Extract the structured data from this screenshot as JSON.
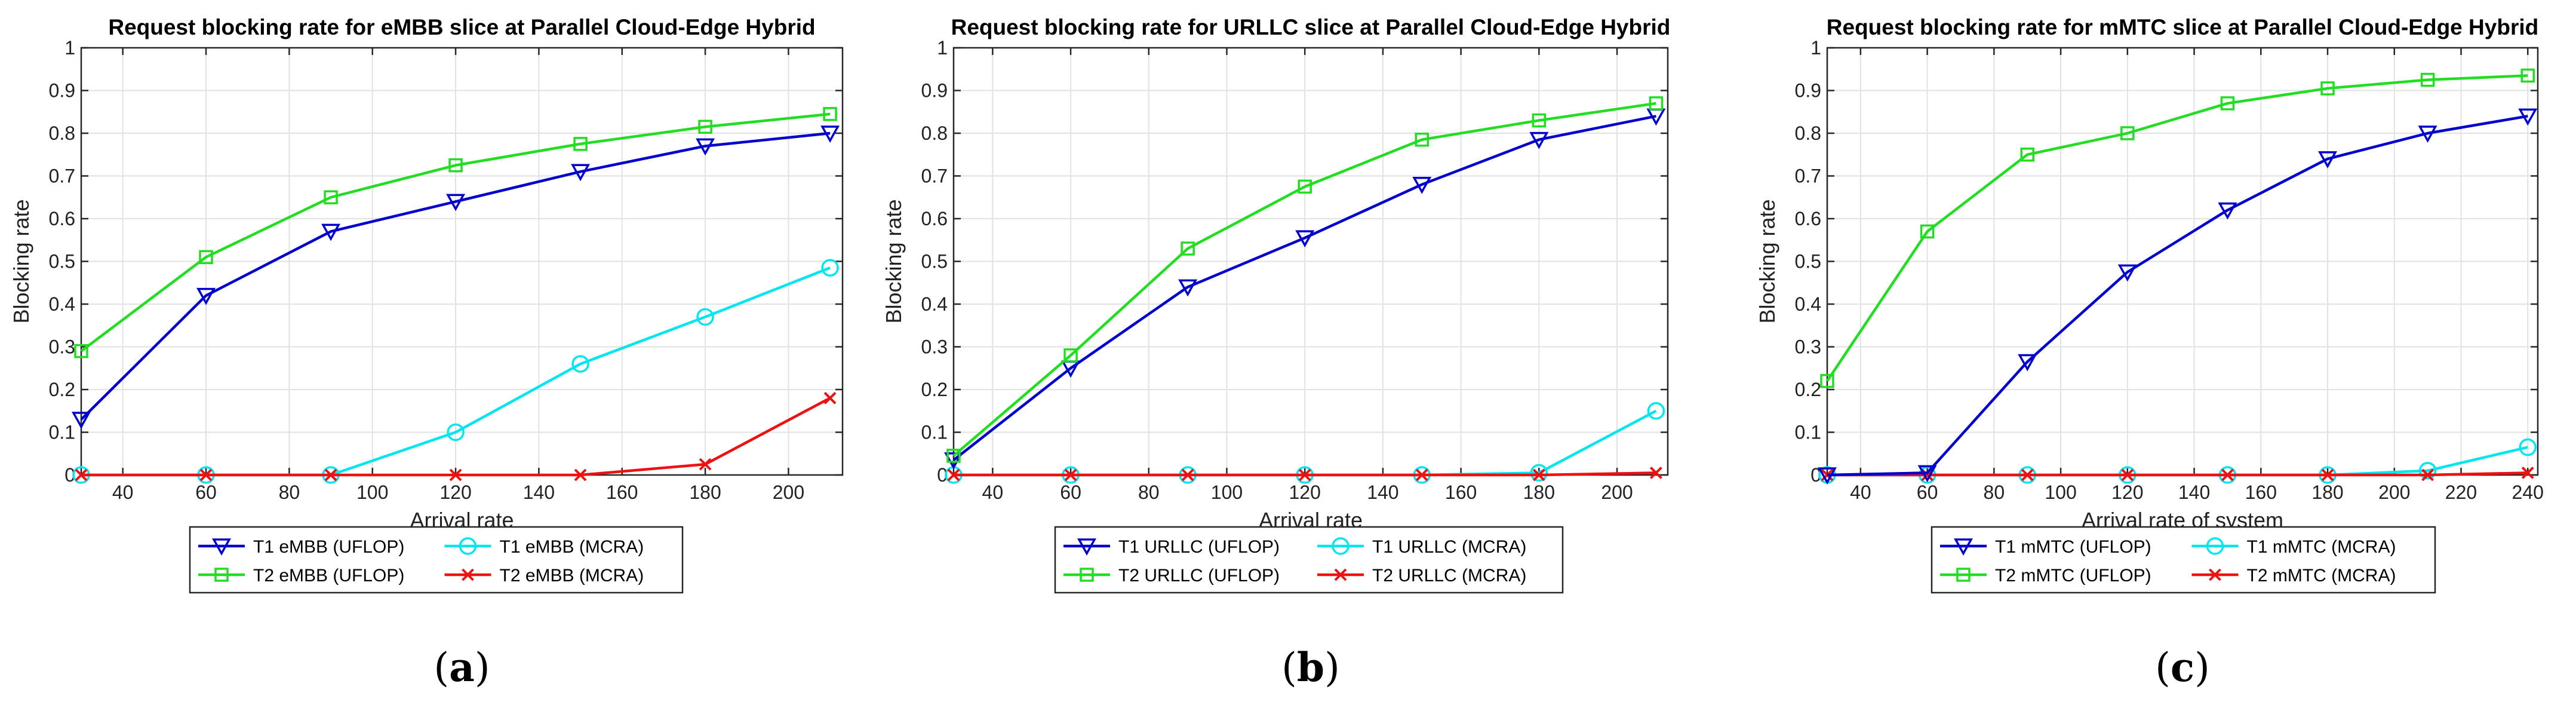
{
  "chart_data": [
    {
      "type": "line",
      "panel_label": "(a)",
      "panel_letter": "a",
      "title": "Request blocking rate for eMBB slice at Parallel Cloud-Edge Hybrid",
      "xlabel": "Arrival rate",
      "ylabel": "Blocking rate",
      "xlim": [
        30,
        213
      ],
      "ylim": [
        0,
        1
      ],
      "xticks": [
        40,
        60,
        80,
        100,
        120,
        140,
        160,
        180,
        200
      ],
      "xtick_labels": [
        "40",
        "60",
        "80",
        "100",
        "120",
        "140",
        "160",
        "180",
        "200"
      ],
      "yticks": [
        0,
        0.1,
        0.2,
        0.3,
        0.4,
        0.5,
        0.6,
        0.7,
        0.8,
        0.9,
        1
      ],
      "ytick_labels": [
        "0",
        "0.1",
        "0.2",
        "0.3",
        "0.4",
        "0.5",
        "0.6",
        "0.7",
        "0.8",
        "0.9",
        "1"
      ],
      "grid": true,
      "legend_position": "bottom",
      "x": [
        30,
        60,
        90,
        120,
        150,
        180,
        210
      ],
      "series": [
        {
          "name": "T1 eMBB (UFLOP)",
          "color": "#0000cc",
          "marker": "triangle-down",
          "values": [
            0.13,
            0.42,
            0.57,
            0.64,
            0.71,
            0.77,
            0.8
          ]
        },
        {
          "name": "T1 eMBB (MCRA)",
          "color": "#00e5ee",
          "marker": "circle",
          "values": [
            0.0,
            0.0,
            0.0,
            0.1,
            0.26,
            0.37,
            0.485
          ]
        },
        {
          "name": "T2 eMBB (UFLOP)",
          "color": "#22dd22",
          "marker": "square",
          "values": [
            0.29,
            0.51,
            0.65,
            0.725,
            0.775,
            0.815,
            0.845
          ]
        },
        {
          "name": "T2 eMBB (MCRA)",
          "color": "#ee1111",
          "marker": "x",
          "values": [
            0.0,
            0.0,
            0.0,
            0.0,
            0.0,
            0.025,
            0.18
          ]
        }
      ]
    },
    {
      "type": "line",
      "panel_label": "(b)",
      "panel_letter": "b",
      "title": "Request blocking rate for URLLC slice at Parallel Cloud-Edge Hybrid",
      "xlabel": "Arrival rate",
      "ylabel": "Blocking rate",
      "xlim": [
        30,
        213
      ],
      "ylim": [
        0,
        1
      ],
      "xticks": [
        40,
        60,
        80,
        100,
        120,
        140,
        160,
        180,
        200
      ],
      "xtick_labels": [
        "40",
        "60",
        "80",
        "100",
        "120",
        "140",
        "160",
        "180",
        "200"
      ],
      "yticks": [
        0,
        0.1,
        0.2,
        0.3,
        0.4,
        0.5,
        0.6,
        0.7,
        0.8,
        0.9,
        1
      ],
      "ytick_labels": [
        "0",
        "0.1",
        "0.2",
        "0.3",
        "0.4",
        "0.5",
        "0.6",
        "0.7",
        "0.8",
        "0.9",
        "1"
      ],
      "grid": true,
      "legend_position": "bottom",
      "x": [
        30,
        60,
        90,
        120,
        150,
        180,
        210
      ],
      "series": [
        {
          "name": "T1 URLLC (UFLOP)",
          "color": "#0000cc",
          "marker": "triangle-down",
          "values": [
            0.035,
            0.25,
            0.44,
            0.555,
            0.68,
            0.785,
            0.84
          ]
        },
        {
          "name": "T1 URLLC (MCRA)",
          "color": "#00e5ee",
          "marker": "circle",
          "values": [
            0.0,
            0.0,
            0.0,
            0.0,
            0.0,
            0.005,
            0.15
          ]
        },
        {
          "name": "T2 URLLC (UFLOP)",
          "color": "#22dd22",
          "marker": "square",
          "values": [
            0.045,
            0.28,
            0.53,
            0.675,
            0.785,
            0.83,
            0.87
          ]
        },
        {
          "name": "T2 URLLC (MCRA)",
          "color": "#ee1111",
          "marker": "x",
          "values": [
            0.0,
            0.0,
            0.0,
            0.0,
            0.0,
            0.0,
            0.005
          ]
        }
      ]
    },
    {
      "type": "line",
      "panel_label": "(c)",
      "panel_letter": "c",
      "title": "Request blocking rate for mMTC slice at Parallel Cloud-Edge Hybrid",
      "xlabel": "Arrival rate of system",
      "ylabel": "Blocking rate",
      "xlim": [
        30,
        243
      ],
      "ylim": [
        0,
        1
      ],
      "xticks": [
        40,
        60,
        80,
        100,
        120,
        140,
        160,
        180,
        200,
        220,
        240
      ],
      "xtick_labels": [
        "40",
        "60",
        "80",
        "100",
        "120",
        "140",
        "160",
        "180",
        "200",
        "220",
        "240"
      ],
      "yticks": [
        0,
        0.1,
        0.2,
        0.3,
        0.4,
        0.5,
        0.6,
        0.7,
        0.8,
        0.9,
        1
      ],
      "ytick_labels": [
        "0",
        "0.1",
        "0.2",
        "0.3",
        "0.4",
        "0.5",
        "0.6",
        "0.7",
        "0.8",
        "0.9",
        "1"
      ],
      "grid": true,
      "legend_position": "bottom",
      "x": [
        30,
        60,
        90,
        120,
        150,
        180,
        210,
        240
      ],
      "series": [
        {
          "name": "T1 mMTC (UFLOP)",
          "color": "#0000cc",
          "marker": "triangle-down",
          "values": [
            0.0,
            0.005,
            0.265,
            0.475,
            0.62,
            0.74,
            0.8,
            0.84
          ]
        },
        {
          "name": "T1 mMTC (MCRA)",
          "color": "#00e5ee",
          "marker": "circle",
          "values": [
            0.0,
            0.0,
            0.0,
            0.0,
            0.0,
            0.0,
            0.01,
            0.065
          ]
        },
        {
          "name": "T2 mMTC (UFLOP)",
          "color": "#22dd22",
          "marker": "square",
          "values": [
            0.22,
            0.57,
            0.75,
            0.8,
            0.87,
            0.905,
            0.925,
            0.935
          ]
        },
        {
          "name": "T2 mMTC (MCRA)",
          "color": "#ee1111",
          "marker": "x",
          "values": [
            0.0,
            0.0,
            0.0,
            0.0,
            0.0,
            0.0,
            0.0,
            0.005
          ]
        }
      ]
    }
  ]
}
